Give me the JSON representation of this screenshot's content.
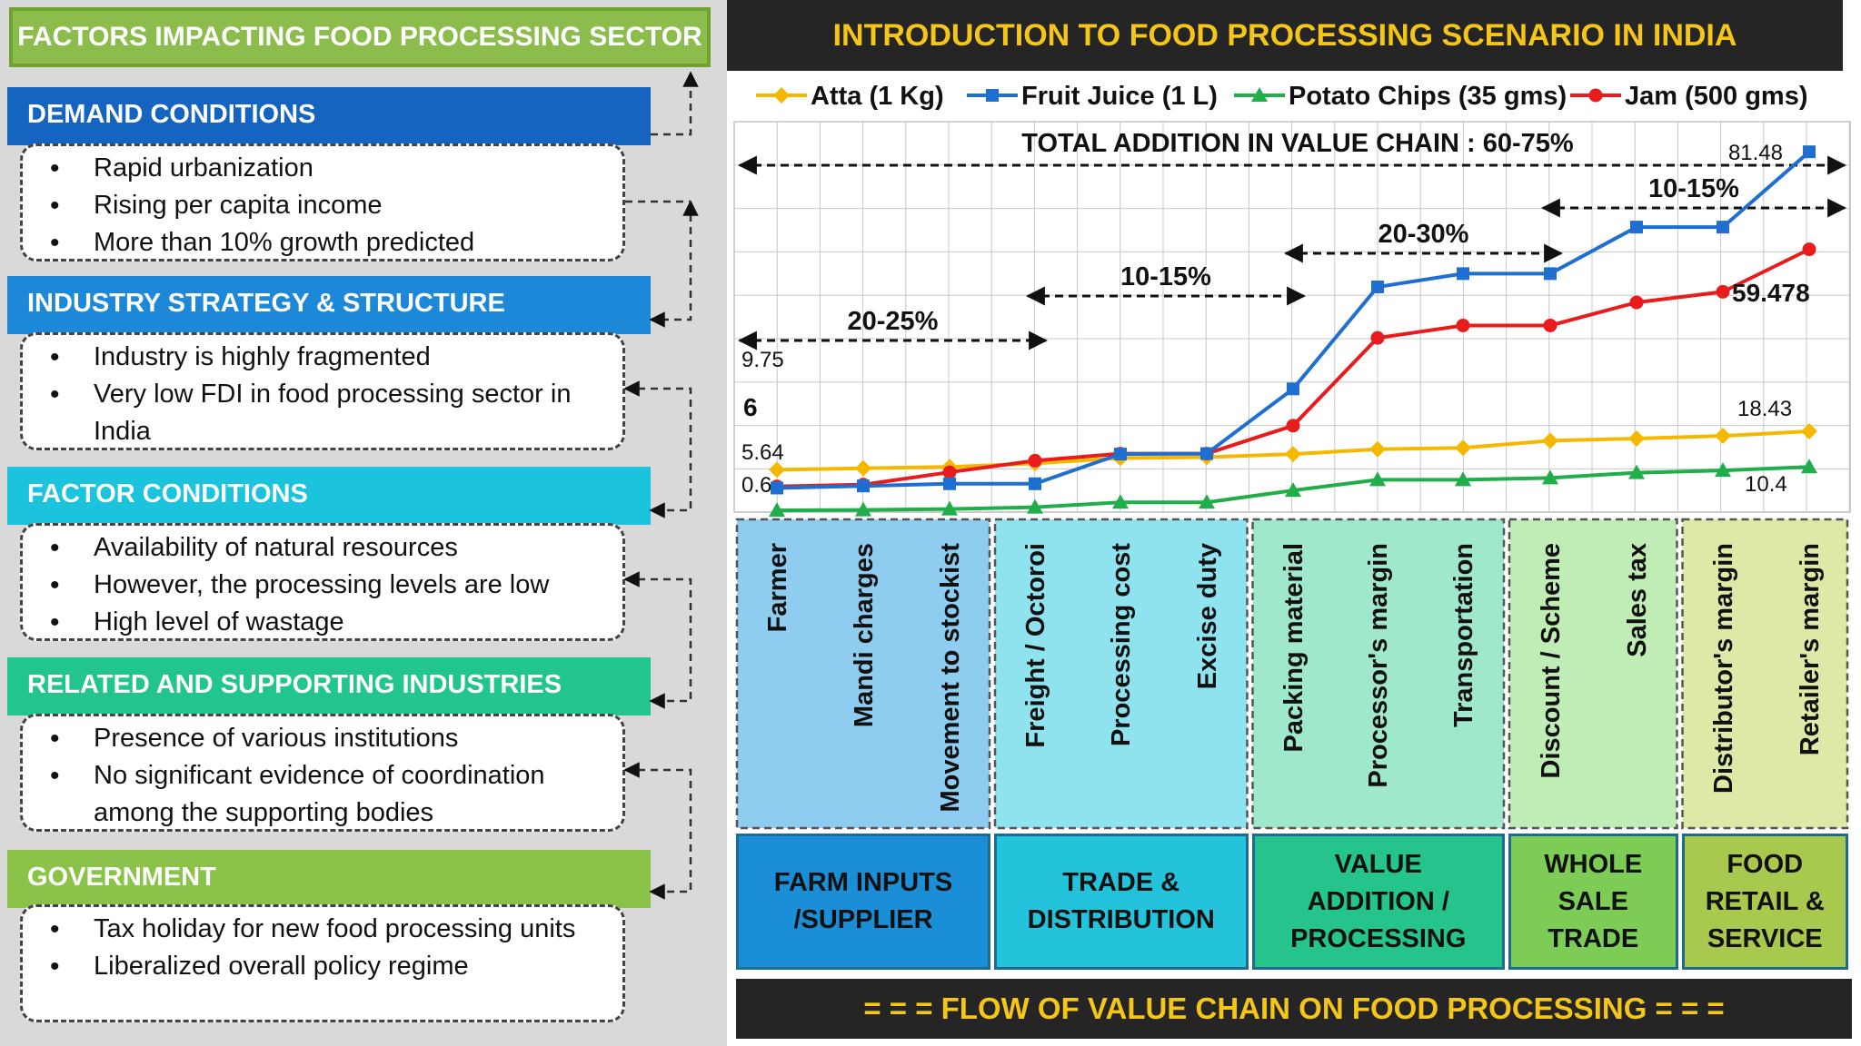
{
  "left": {
    "title": "FACTORS IMPACTING FOOD PROCESSING SECTOR",
    "sections": [
      {
        "header": "DEMAND CONDITIONS",
        "color": "#1565c0",
        "bullets": [
          "Rapid urbanization",
          "Rising per capita income",
          "More than 10% growth predicted"
        ]
      },
      {
        "header": "INDUSTRY STRATEGY & STRUCTURE",
        "color": "#1e88d8",
        "bullets": [
          "Industry is highly fragmented",
          "Very low FDI in food processing sector in India"
        ]
      },
      {
        "header": "FACTOR CONDITIONS",
        "color": "#1bc4dc",
        "bullets": [
          "Availability of natural resources",
          "However, the processing levels are low",
          "High level of wastage"
        ]
      },
      {
        "header": "RELATED AND SUPPORTING INDUSTRIES",
        "color": "#22c58b",
        "bullets": [
          "Presence of various institutions",
          "No significant evidence of coordination among the supporting bodies"
        ]
      },
      {
        "header": "GOVERNMENT",
        "color": "#8bc34a",
        "bullets": [
          "Tax holiday for new food processing units",
          "Liberalized overall policy regime"
        ]
      }
    ]
  },
  "right": {
    "title": "INTRODUCTION TO FOOD PROCESSING SCENARIO IN INDIA",
    "banner": "=  =  =   FLOW OF VALUE CHAIN ON FOOD PROCESSING   =  =  ="
  },
  "chart_data": {
    "type": "line",
    "title": "TOTAL  ADDITION IN VALUE CHAIN : 60-75%",
    "categories": [
      "Farmer",
      "Mandi charges",
      "Movement to stockist",
      "Freight / Octoroi",
      "Processing cost",
      "Excise duty",
      "Packing material",
      "Processor's margin",
      "Transportation",
      "Discount / Scheme",
      "Sales tax",
      "Distributor's margin",
      "Retailer's margin"
    ],
    "ylim": [
      0,
      85
    ],
    "grid": true,
    "legend": "top",
    "series": [
      {
        "name": "Atta (1 Kg)",
        "color": "#f5b800",
        "marker": "diamond",
        "values": [
          9.75,
          10.1,
          10.4,
          11.2,
          12.4,
          12.6,
          13.3,
          14.4,
          14.7,
          16.3,
          16.8,
          17.4,
          18.43
        ]
      },
      {
        "name": "Fruit Juice (1 L)",
        "color": "#1f6fd1",
        "marker": "square",
        "values": [
          5.64,
          6.1,
          6.6,
          6.6,
          13.3,
          13.4,
          28.0,
          51.0,
          54.0,
          54.0,
          64.5,
          64.5,
          81.48
        ]
      },
      {
        "name": "Potato Chips (35 gms)",
        "color": "#1fae4a",
        "marker": "triangle",
        "values": [
          0.6,
          0.7,
          0.9,
          1.3,
          2.4,
          2.4,
          5.1,
          7.5,
          7.5,
          7.9,
          9.1,
          9.6,
          10.4
        ]
      },
      {
        "name": "Jam (500 gms)",
        "color": "#e81c1c",
        "marker": "circle",
        "values": [
          6.0,
          6.4,
          9.2,
          11.8,
          13.4,
          13.4,
          19.7,
          39.5,
          42.3,
          42.3,
          47.5,
          49.9,
          59.478
        ]
      }
    ],
    "data_labels": [
      {
        "text": "9.75",
        "series": "Atta (1 Kg)",
        "index": 0
      },
      {
        "text": "6",
        "series": "Jam (500 gms)",
        "index": 0
      },
      {
        "text": "5.64",
        "series": "Fruit Juice (1 L)",
        "index": 0
      },
      {
        "text": "0.6",
        "series": "Potato Chips (35 gms)",
        "index": 0
      },
      {
        "text": "81.48",
        "series": "Fruit Juice (1 L)",
        "index": 12
      },
      {
        "text": "59.478",
        "series": "Jam (500 gms)",
        "index": 12
      },
      {
        "text": "18.43",
        "series": "Atta (1 Kg)",
        "index": 12
      },
      {
        "text": "10.4",
        "series": "Potato Chips (35 gms)",
        "index": 12
      }
    ],
    "annotations": [
      {
        "text": "20-25%",
        "from": 0,
        "to": 3
      },
      {
        "text": "10-15%",
        "from": 3,
        "to": 6
      },
      {
        "text": "20-30%",
        "from": 6,
        "to": 9
      },
      {
        "text": "10-15%",
        "from": 9,
        "to": 13
      }
    ],
    "stages": [
      {
        "name": "FARM INPUTS\n/SUPPLIER",
        "from": 0,
        "to": 3,
        "fill": "#8ecdf0",
        "titleFill": "#1a8fd8"
      },
      {
        "name": "TRADE &\nDISTRIBUTION",
        "from": 3,
        "to": 6,
        "fill": "#8fe3ef",
        "titleFill": "#23c4db"
      },
      {
        "name": "VALUE\nADDITION /\nPROCESSING",
        "from": 6,
        "to": 9,
        "fill": "#9fe8cb",
        "titleFill": "#26c48d"
      },
      {
        "name": "WHOLE\nSALE\nTRADE",
        "from": 9,
        "to": 11,
        "fill": "#c0ecb6",
        "titleFill": "#7ccc56"
      },
      {
        "name": "FOOD\nRETAIL &\nSERVICE",
        "from": 11,
        "to": 13,
        "fill": "#dde9a6",
        "titleFill": "#a9c84e"
      }
    ]
  }
}
